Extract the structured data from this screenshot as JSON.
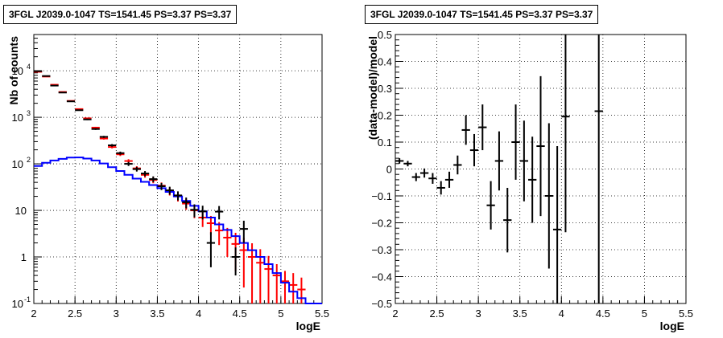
{
  "colors": {
    "data": "#000000",
    "model": "#ff0000",
    "background_model": "#0000ff"
  },
  "chart_data": [
    {
      "type": "scatter",
      "title": "3FGL J2039.0-1047 TS=1541.45 PS=3.37 PS=3.37",
      "xlabel": "logE",
      "ylabel": "Nb of counts",
      "yscale": "log",
      "xlim": [
        2,
        5.5
      ],
      "ylim": [
        0.1,
        60000
      ],
      "grid": true,
      "xticks": [
        "2",
        "2.5",
        "3",
        "3.5",
        "4",
        "4.5",
        "5",
        "5.5"
      ],
      "yticks": [
        {
          "value": 0.1,
          "label": "10",
          "exp": "-1"
        },
        {
          "value": 1,
          "label": "1",
          "exp": ""
        },
        {
          "value": 10,
          "label": "10",
          "exp": ""
        },
        {
          "value": 100,
          "label": "10",
          "exp": "2"
        },
        {
          "value": 1000,
          "label": "10",
          "exp": "3"
        },
        {
          "value": 10000,
          "label": "10",
          "exp": "4"
        }
      ],
      "series": [
        {
          "kind": "data",
          "x": [
            2.05,
            2.15,
            2.25,
            2.35,
            2.45,
            2.55,
            2.65,
            2.75,
            2.85,
            2.95,
            3.05,
            3.15,
            3.25,
            3.35,
            3.45,
            3.55,
            3.65,
            3.75,
            3.85,
            3.95,
            4.05,
            4.15,
            4.25,
            4.35,
            4.45,
            4.55,
            4.65,
            4.75,
            4.85,
            4.95,
            5.05,
            5.15,
            5.25
          ],
          "y": [
            9800,
            7700,
            4800,
            3400,
            2200,
            1420,
            900,
            560,
            380,
            250,
            170,
            100,
            77,
            62,
            47,
            33,
            27,
            21,
            15,
            10.3,
            9.5,
            2.0,
            9.4,
            null,
            1.0,
            4.0,
            null,
            null,
            null,
            null,
            null,
            null,
            null
          ],
          "err_lo": [
            100,
            90,
            70,
            60,
            50,
            38,
            30,
            24,
            19,
            16,
            13,
            10,
            8.7,
            7.9,
            6.8,
            5.7,
            5.2,
            4.6,
            3.9,
            3.2,
            3.1,
            1.4,
            3.0,
            null,
            0.6,
            2.0,
            null,
            null,
            null,
            null,
            null,
            null,
            null
          ],
          "err_hi": [
            100,
            90,
            70,
            60,
            50,
            38,
            30,
            24,
            19,
            16,
            13,
            10,
            8.7,
            7.9,
            6.8,
            5.7,
            5.2,
            4.6,
            3.9,
            3.2,
            3.1,
            1.4,
            3.0,
            null,
            0.6,
            2.0,
            null,
            null,
            null,
            null,
            null,
            null,
            null
          ]
        },
        {
          "kind": "model",
          "x": [
            2.05,
            2.15,
            2.25,
            2.35,
            2.45,
            2.55,
            2.65,
            2.75,
            2.85,
            2.95,
            3.05,
            3.15,
            3.25,
            3.35,
            3.45,
            3.55,
            3.65,
            3.75,
            3.85,
            3.95,
            4.05,
            4.15,
            4.25,
            4.35,
            4.45,
            4.55,
            4.65,
            4.75,
            4.85,
            4.95,
            5.05,
            5.15,
            5.25
          ],
          "y": [
            9500,
            7500,
            5000,
            3500,
            2250,
            1500,
            950,
            600,
            350,
            230,
            160,
            115,
            80,
            58,
            45,
            34,
            26,
            20,
            14,
            10,
            7,
            5.3,
            3.7,
            2.6,
            1.9,
            1.4,
            1.0,
            0.75,
            0.55,
            0.4,
            0.3,
            0.25,
            0.2
          ],
          "err_lo": [
            95,
            85,
            70,
            60,
            48,
            38,
            30,
            24,
            18,
            15,
            12.6,
            10.7,
            8.9,
            7.6,
            6.7,
            5.8,
            5.1,
            4.5,
            3.7,
            3.2,
            2.6,
            2.3,
            1.9,
            1.6,
            1.4,
            1.18,
            0.97,
            0.72,
            0.5,
            0.3,
            0.2,
            0.2,
            0.16
          ],
          "err_hi": [
            95,
            85,
            70,
            60,
            48,
            38,
            30,
            24,
            18,
            15,
            12.6,
            10.7,
            8.9,
            7.6,
            6.7,
            5.8,
            5.1,
            4.5,
            3.7,
            3.2,
            2.6,
            2.3,
            1.9,
            1.6,
            1.4,
            1.18,
            0.97,
            0.72,
            0.5,
            0.3,
            0.2,
            0.2,
            0.16
          ]
        },
        {
          "kind": "background_model",
          "x": [
            2.05,
            2.15,
            2.25,
            2.35,
            2.45,
            2.55,
            2.65,
            2.75,
            2.85,
            2.95,
            3.05,
            3.15,
            3.25,
            3.35,
            3.45,
            3.55,
            3.65,
            3.75,
            3.85,
            3.95,
            4.05,
            4.15,
            4.25,
            4.35,
            4.45,
            4.55,
            4.65,
            4.75,
            4.85,
            4.95,
            5.05,
            5.15,
            5.25,
            5.35,
            5.45
          ],
          "y": [
            90,
            105,
            118,
            128,
            136,
            137,
            130,
            118,
            102,
            85,
            70,
            58,
            48,
            41,
            35,
            30,
            25,
            20,
            16,
            12.5,
            9.5,
            7,
            5,
            3.8,
            2.8,
            2.0,
            1.4,
            1.0,
            0.7,
            0.45,
            0.28,
            0.18,
            0.13,
            0.1,
            0.1
          ]
        }
      ]
    },
    {
      "type": "scatter",
      "title": "3FGL J2039.0-1047 TS=1541.45 PS=3.37 PS=3.37",
      "xlabel": "logE",
      "ylabel": "(data-model)/model",
      "xlim": [
        2,
        5.5
      ],
      "ylim": [
        -0.5,
        0.5
      ],
      "grid": true,
      "xticks": [
        "2",
        "2.5",
        "3",
        "3.5",
        "4",
        "4.5",
        "5",
        "5.5"
      ],
      "yticks": [
        "−0.5",
        "−0.4",
        "−0.3",
        "−0.2",
        "−0.1",
        "0",
        "0.1",
        "0.2",
        "0.3",
        "0.4",
        "0.5"
      ],
      "series": [
        {
          "kind": "data",
          "x": [
            2.05,
            2.15,
            2.25,
            2.35,
            2.45,
            2.55,
            2.65,
            2.75,
            2.85,
            2.95,
            3.05,
            3.15,
            3.25,
            3.35,
            3.45,
            3.55,
            3.65,
            3.75,
            3.85,
            3.95,
            4.05,
            4.45
          ],
          "y": [
            0.03,
            0.02,
            -0.03,
            -0.015,
            -0.035,
            -0.07,
            -0.04,
            0.015,
            0.145,
            0.07,
            0.155,
            -0.135,
            0.03,
            -0.19,
            0.1,
            0.03,
            -0.04,
            0.085,
            -0.1,
            -0.225,
            0.195,
            0.215
          ],
          "err": [
            0.01,
            0.01,
            0.015,
            0.017,
            0.02,
            0.025,
            0.03,
            0.035,
            0.055,
            0.06,
            0.085,
            0.09,
            0.11,
            0.12,
            0.14,
            0.15,
            0.16,
            0.26,
            0.27,
            0.31,
            0.43,
            0.72
          ]
        }
      ]
    }
  ]
}
